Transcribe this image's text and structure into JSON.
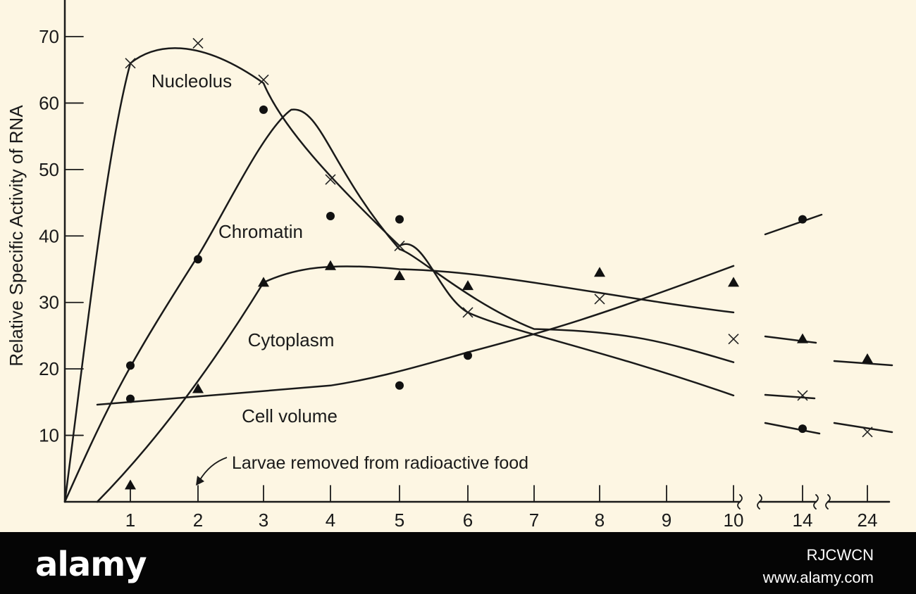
{
  "chart_data": {
    "type": "line",
    "ylabel": "Relative Specific Activity of RNA",
    "xlabel": "",
    "ylim": [
      0,
      70
    ],
    "yticks": [
      10,
      20,
      30,
      40,
      50,
      60,
      70
    ],
    "xticks": [
      "1",
      "2",
      "3",
      "4",
      "5",
      "6",
      "7",
      "8",
      "9",
      "10",
      "14",
      "24"
    ],
    "series": [
      {
        "name": "Nucleolus",
        "marker": "x",
        "points": [
          [
            1,
            66
          ],
          [
            2,
            69
          ],
          [
            3,
            63.5
          ],
          [
            4,
            48.5
          ],
          [
            5,
            38.5
          ],
          [
            6,
            28.5
          ],
          [
            8,
            30.5
          ],
          [
            10,
            24.5
          ],
          [
            14,
            16
          ],
          [
            24,
            10.5
          ]
        ]
      },
      {
        "name": "Chromatin",
        "marker": "circle",
        "points": [
          [
            1,
            20.5
          ],
          [
            2,
            36.5
          ],
          [
            3,
            59
          ],
          [
            4,
            43
          ],
          [
            5,
            42.5
          ],
          [
            14,
            42.5
          ]
        ]
      },
      {
        "name": "Cytoplasm",
        "marker": "triangle",
        "points": [
          [
            1,
            2.5
          ],
          [
            2,
            17
          ],
          [
            3,
            33
          ],
          [
            4,
            35.5
          ],
          [
            5,
            34
          ],
          [
            6,
            32.5
          ],
          [
            8,
            34.5
          ],
          [
            10,
            33
          ],
          [
            14,
            24.5
          ],
          [
            24,
            21.5
          ]
        ]
      },
      {
        "name": "Cell volume",
        "marker": "circle",
        "points": [
          [
            1,
            15.5
          ],
          [
            5,
            17.5
          ],
          [
            6,
            22
          ],
          [
            14,
            11
          ]
        ]
      }
    ],
    "annotations": [
      "Larvae removed from radioactive food"
    ]
  },
  "footer": {
    "brand": "alamy",
    "image_code": "RJCWCN",
    "site": "www.alamy.com"
  }
}
